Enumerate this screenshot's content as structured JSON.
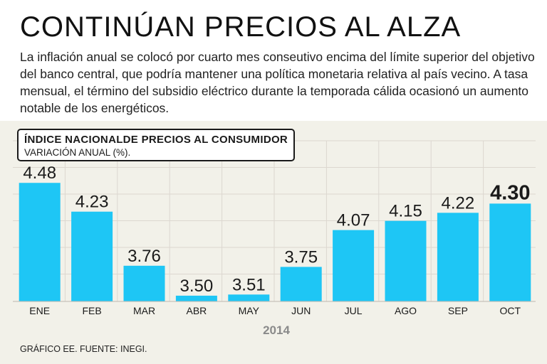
{
  "headline": "CONTINÚAN PRECIOS AL ALZA",
  "intro": "La inflación anual se colocó por cuarto mes conseutivo encima del límite superior del objetivo del banco central, que podría mantener una política monetaria relativa al país vecino. A tasa mensual, el término del subsidio eléctrico durante la temporada cálida ocasionó un aumento notable de los energéticos.",
  "source": "GRÁFICO EE. FUENTE: INEGI.",
  "colors": {
    "bar": "#1ec6f5",
    "panel": "#f2f1e9",
    "grid": "#dcd7d0",
    "text": "#1a1a1a",
    "year_label": "#8a8a8a"
  },
  "chart_data": {
    "type": "bar",
    "title": "ÍNDICE NACIONALDE PRECIOS AL CONSUMIDOR",
    "subtitle": "VARIACIÓN ANUAL (%).",
    "xlabel": "2014",
    "ylabel": "",
    "categories": [
      "ENE",
      "FEB",
      "MAR",
      "ABR",
      "MAY",
      "JUN",
      "JUL",
      "AGO",
      "SEP",
      "OCT"
    ],
    "values": [
      4.48,
      4.23,
      3.76,
      3.5,
      3.51,
      3.75,
      4.07,
      4.15,
      4.22,
      4.3
    ],
    "value_labels": [
      "4.48",
      "4.23",
      "3.76",
      "3.50",
      "3.51",
      "3.75",
      "4.07",
      "4.15",
      "4.22",
      "4.30"
    ],
    "highlighted": "OCT",
    "ylim": [
      3.45,
      4.5
    ],
    "grid": true
  }
}
